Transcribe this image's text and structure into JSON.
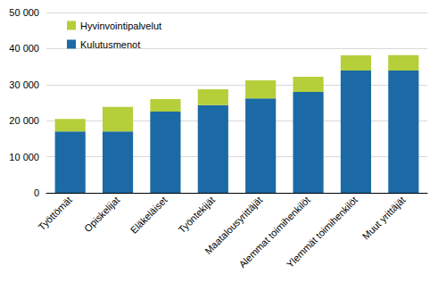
{
  "chart_data": {
    "type": "bar",
    "stacked": true,
    "grid": true,
    "legend": "upper left",
    "categories": [
      "Työttömät",
      "Opiskelijat",
      "Eläkeläiset",
      "Työntekijät",
      "Maatalousyrittäjät",
      "Alemmat toimihenkilöt",
      "Ylemmät toimihenkilöt",
      "Muut yrittäjät"
    ],
    "series": [
      {
        "name": "Kulutusmenot",
        "color": "#1b6aa5",
        "values": [
          17000,
          17000,
          22500,
          24300,
          26200,
          28000,
          33900,
          33900
        ]
      },
      {
        "name": "Hyvinvointipalvelut",
        "color": "#b4cf3a",
        "values": [
          3500,
          6800,
          3500,
          4400,
          5000,
          4200,
          4200,
          4300
        ]
      }
    ],
    "ylim": [
      0,
      50000
    ],
    "yticks": [
      0,
      {
        "value": 10000,
        "label": "10 000"
      },
      {
        "value": 20000,
        "label": "20 000"
      },
      {
        "value": 30000,
        "label": "30 000"
      },
      {
        "value": 40000,
        "label": "40 000"
      },
      {
        "value": 50000,
        "label": "50 000"
      }
    ]
  }
}
